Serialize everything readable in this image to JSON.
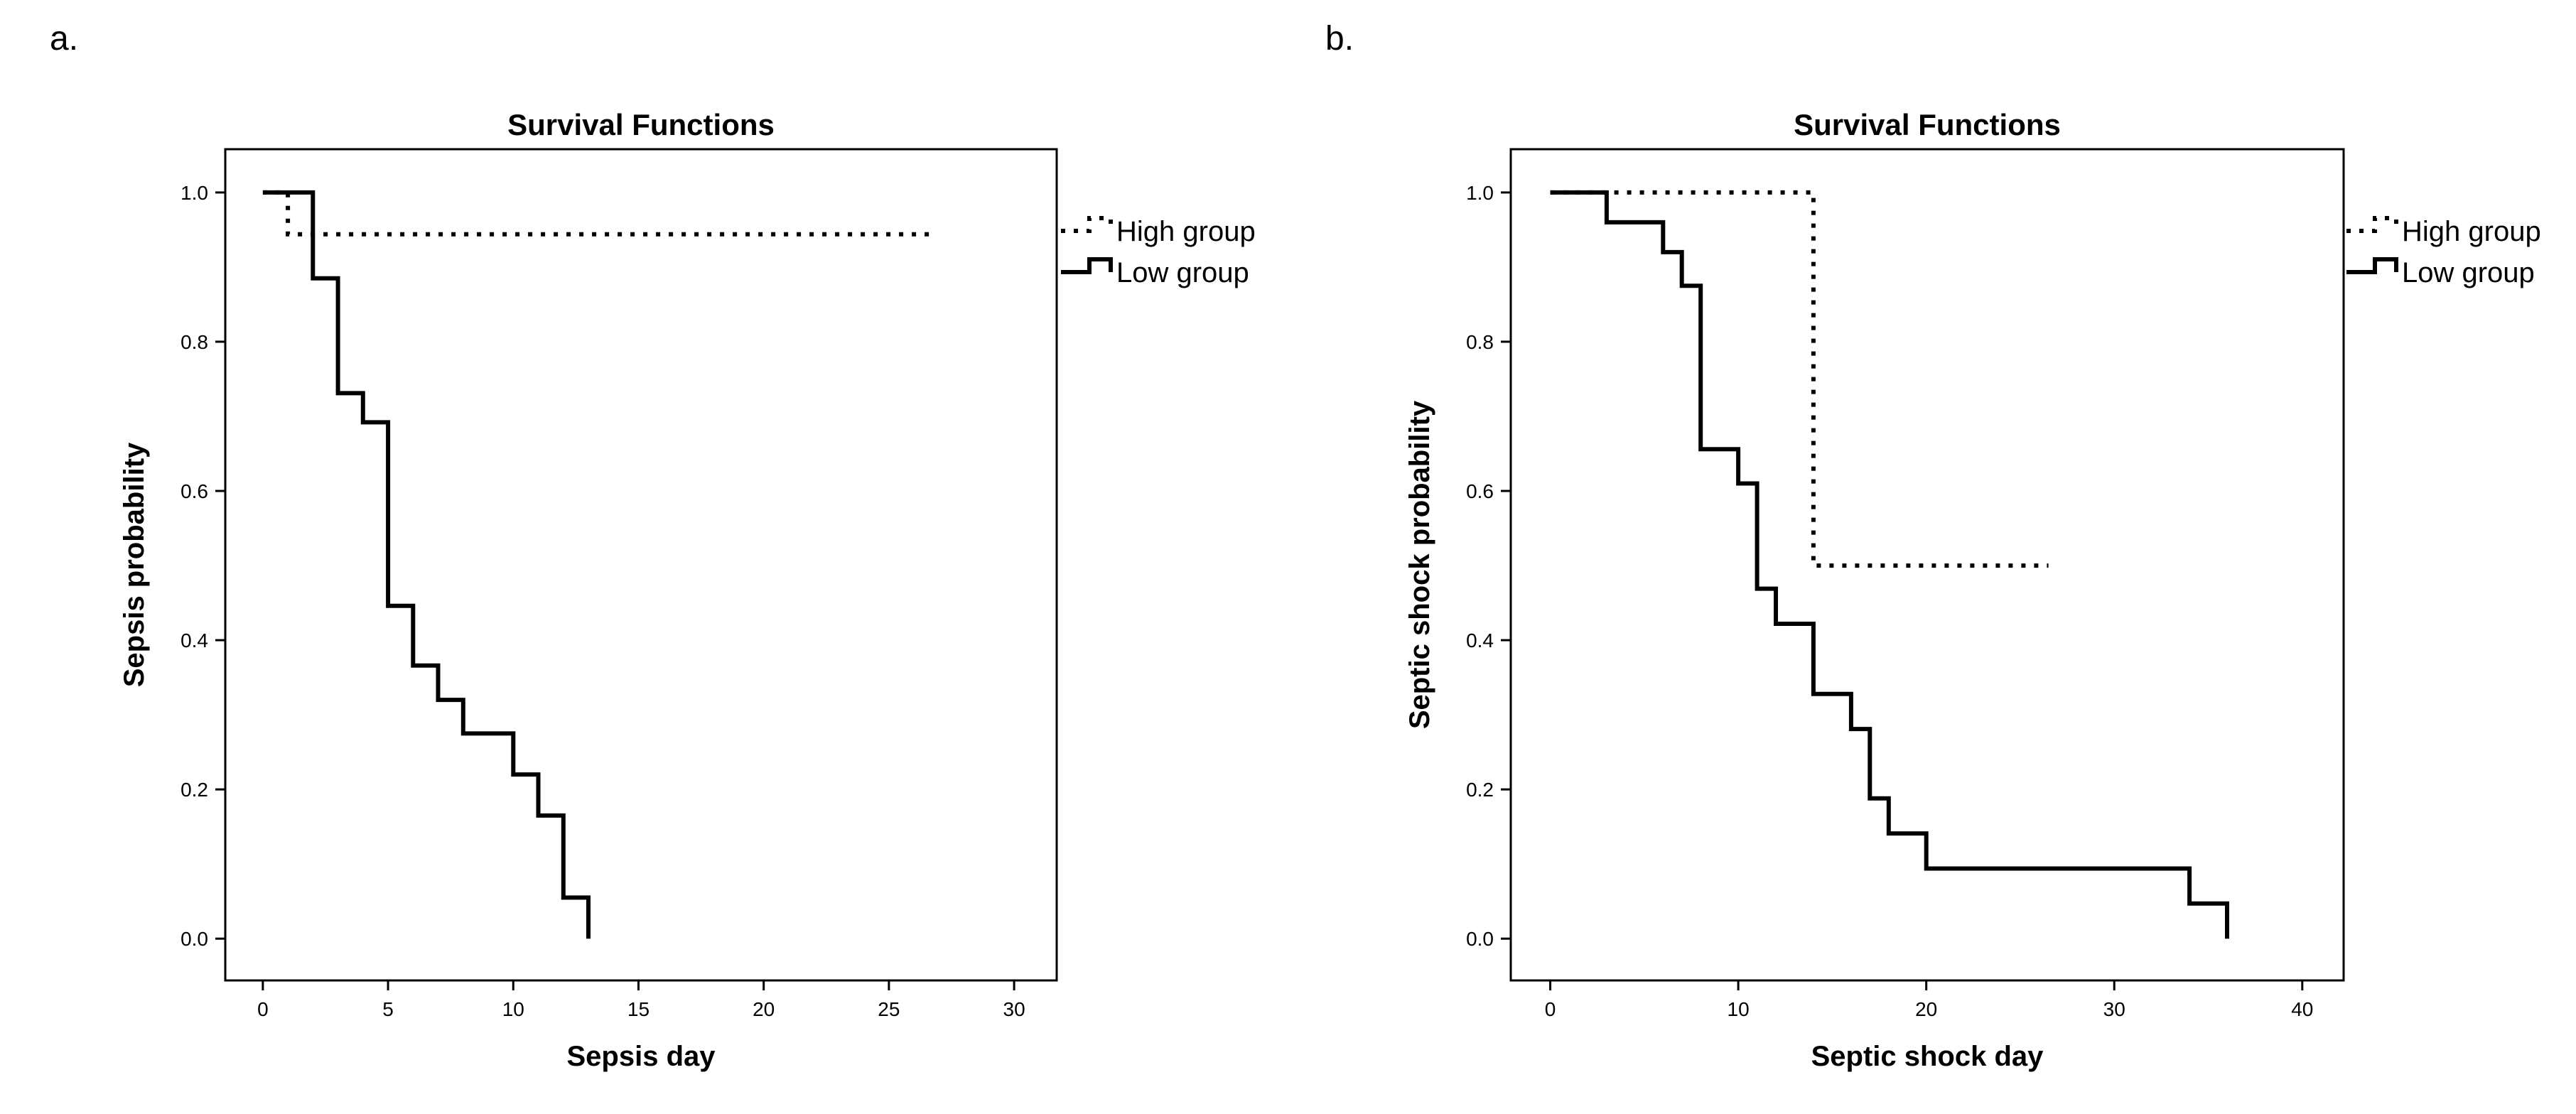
{
  "panels": [
    {
      "letter": "a.",
      "chart_data": {
        "type": "line",
        "step": true,
        "title": "Survival Functions",
        "xlabel": "Sepsis day",
        "ylabel": "Sepsis probability",
        "xlim": [
          -1.5,
          31.7
        ],
        "ylim": [
          -0.056,
          1.058
        ],
        "xticks": [
          0,
          5,
          10,
          15,
          20,
          25,
          30
        ],
        "yticks": [
          0.0,
          0.2,
          0.4,
          0.6,
          0.8,
          1.0
        ],
        "grid": false,
        "legend_position": "right",
        "series": [
          {
            "name": "High group",
            "style": "dotted",
            "x": [
              0,
              1,
              1,
              26.7
            ],
            "y": [
              1.0,
              1.0,
              0.944,
              0.944
            ]
          },
          {
            "name": "Low group",
            "style": "solid",
            "x": [
              0,
              2,
              2,
              3,
              3,
              4,
              4,
              5,
              5,
              6,
              6,
              7,
              7,
              8,
              8,
              10,
              10,
              11,
              11,
              12,
              12,
              13,
              13
            ],
            "y": [
              1.0,
              1.0,
              0.885,
              0.885,
              0.731,
              0.731,
              0.692,
              0.692,
              0.446,
              0.446,
              0.366,
              0.366,
              0.32,
              0.32,
              0.275,
              0.275,
              0.22,
              0.22,
              0.165,
              0.165,
              0.055,
              0.055,
              0.0
            ]
          }
        ]
      }
    },
    {
      "letter": "b.",
      "chart_data": {
        "type": "line",
        "step": true,
        "title": "Survival Functions",
        "xlabel": "Septic shock day",
        "ylabel": "Septic shock probability",
        "xlim": [
          -2.1,
          42.2
        ],
        "ylim": [
          -0.056,
          1.058
        ],
        "xticks": [
          0,
          10,
          20,
          30,
          40
        ],
        "yticks": [
          0.0,
          0.2,
          0.4,
          0.6,
          0.8,
          1.0
        ],
        "grid": false,
        "legend_position": "right",
        "series": [
          {
            "name": "High group",
            "style": "dotted",
            "x": [
              0,
              14,
              14,
              26.5
            ],
            "y": [
              1.0,
              1.0,
              0.5,
              0.5
            ]
          },
          {
            "name": "Low group",
            "style": "solid",
            "x": [
              0,
              3,
              3,
              6,
              6,
              7,
              7,
              8,
              8,
              10,
              10,
              11,
              11,
              12,
              12,
              14,
              14,
              16,
              16,
              17,
              17,
              18,
              18,
              20,
              20,
              34,
              34,
              36,
              36
            ],
            "y": [
              1.0,
              1.0,
              0.96,
              0.96,
              0.92,
              0.92,
              0.875,
              0.875,
              0.656,
              0.656,
              0.61,
              0.61,
              0.469,
              0.469,
              0.422,
              0.422,
              0.328,
              0.328,
              0.281,
              0.281,
              0.188,
              0.188,
              0.141,
              0.141,
              0.094,
              0.094,
              0.047,
              0.047,
              0.0
            ]
          }
        ]
      }
    }
  ]
}
